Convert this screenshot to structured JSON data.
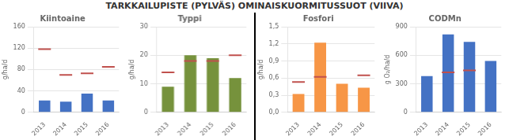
{
  "title": "TARKKAILUPISTE (PYLVÄS) OMINAISKUORMITUSSUOT (VIIVA)",
  "chart_data": [
    {
      "type": "bar",
      "title": "Kiintoaine",
      "ylabel": "g/ha/d",
      "categories": [
        "2013",
        "2014",
        "2015",
        "2016"
      ],
      "series": [
        {
          "type": "bar",
          "color": "#4472C4",
          "values": [
            22,
            20,
            35,
            22
          ]
        },
        {
          "type": "line",
          "line_style": "none",
          "marker": "dash",
          "color": "#C0504D",
          "values": [
            118,
            70,
            73,
            85
          ]
        }
      ],
      "ylim": [
        0,
        160
      ],
      "yticks": [
        0,
        40,
        80,
        120,
        160
      ],
      "grid": true
    },
    {
      "type": "bar",
      "title": "Typpi",
      "ylabel": "g/ha/d",
      "categories": [
        "2013",
        "2014",
        "2015",
        "2016"
      ],
      "series": [
        {
          "type": "bar",
          "color": "#76923C",
          "values": [
            9,
            20,
            19,
            12
          ]
        },
        {
          "type": "line",
          "line_style": "none",
          "marker": "dash",
          "color": "#C0504D",
          "values": [
            14,
            18,
            18,
            20
          ]
        }
      ],
      "ylim": [
        0,
        30
      ],
      "yticks": [
        0,
        10,
        20,
        30
      ],
      "grid": true
    },
    {
      "type": "bar",
      "title": "Fosfori",
      "ylabel": "g/ha/d",
      "categories": [
        "2013",
        "2014",
        "2015",
        "2016"
      ],
      "series": [
        {
          "type": "bar",
          "color": "#F79646",
          "values": [
            0.32,
            1.22,
            0.5,
            0.43
          ]
        },
        {
          "type": "line",
          "line_style": "none",
          "marker": "dash",
          "color": "#C0504D",
          "values": [
            0.53,
            0.62,
            null,
            0.65
          ]
        }
      ],
      "ylim": [
        0.0,
        1.5
      ],
      "yticks": [
        {
          "value": 0.0,
          "label": "0,0"
        },
        {
          "value": 0.3,
          "label": "0,3"
        },
        {
          "value": 0.6,
          "label": "0,6"
        },
        {
          "value": 0.9,
          "label": "0,9"
        },
        {
          "value": 1.2,
          "label": "1,2"
        },
        {
          "value": 1.5,
          "label": "1,5"
        }
      ],
      "grid": true
    },
    {
      "type": "bar",
      "title": "CODMn",
      "ylabel": "g O₂/ha/d",
      "categories": [
        "2013",
        "2014",
        "2015",
        "2016"
      ],
      "series": [
        {
          "type": "bar",
          "color": "#4472C4",
          "values": [
            380,
            820,
            740,
            540
          ]
        },
        {
          "type": "line",
          "line_style": "none",
          "marker": "dash",
          "color": "#C0504D",
          "values": [
            null,
            420,
            440,
            null
          ]
        }
      ],
      "ylim": [
        0,
        900
      ],
      "yticks": [
        0,
        300,
        600,
        900
      ],
      "grid": true
    }
  ]
}
